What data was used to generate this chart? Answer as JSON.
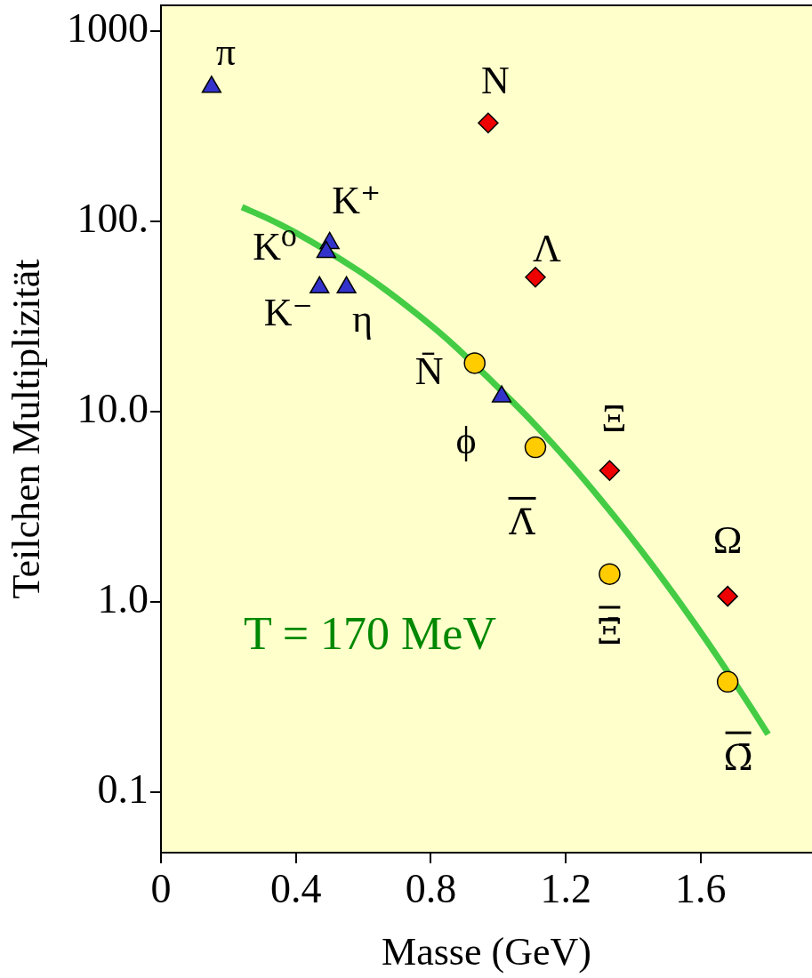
{
  "chart_data": {
    "type": "scatter",
    "xlabel": "Masse (GeV)",
    "ylabel": "Teilchen Multiplizität",
    "log": true,
    "xlim": [
      0,
      1.93
    ],
    "ylim": [
      0.048,
      1370
    ],
    "xticks": [
      0,
      0.4,
      0.8,
      1.2,
      1.6
    ],
    "yticks": [
      1000,
      {
        "value": 100,
        "label": "100."
      },
      {
        "value": 10,
        "label": "10.0"
      },
      {
        "value": 1,
        "label": "1.0"
      },
      0.1
    ],
    "series": [
      {
        "marker": "triangle",
        "color": "#3333cc",
        "x": [
          0.15,
          0.5,
          0.49,
          0.47,
          0.55,
          1.01
        ],
        "values": [
          510,
          77,
          69,
          45,
          45,
          12
        ]
      },
      {
        "marker": "diamond",
        "color": "#ee0000",
        "x": [
          0.97,
          1.11,
          1.33,
          1.68
        ],
        "values": [
          330,
          51,
          4.9,
          1.07
        ]
      },
      {
        "marker": "circle",
        "color": "#ffcc00",
        "x": [
          0.93,
          1.11,
          1.33,
          1.68
        ],
        "values": [
          18,
          6.5,
          1.4,
          0.38
        ]
      },
      {
        "type": "line",
        "color": "#44cc44",
        "x": [
          0.24,
          0.32,
          0.4,
          0.58,
          0.66,
          0.74,
          0.82,
          0.88,
          1.06,
          1.14,
          1.22,
          1.3,
          1.38,
          1.46,
          1.54,
          1.62,
          1.74,
          1.8
        ],
        "values": [
          119,
          103,
          87.2,
          55.9,
          44.5,
          34.7,
          26.6,
          21.4,
          10.5,
          7.45,
          5.17,
          3.51,
          2.34,
          1.53,
          0.98,
          0.615,
          0.295,
          0.201
        ]
      }
    ],
    "annotations": [
      {
        "text": "π",
        "x": 0.15,
        "y": 510
      },
      {
        "text": "K⁺",
        "x": 0.5,
        "y": 77
      },
      {
        "text": "K⁰",
        "x": 0.49,
        "y": 69
      },
      {
        "text": "K⁻",
        "x": 0.47,
        "y": 45
      },
      {
        "text": "η",
        "x": 0.55,
        "y": 45
      },
      {
        "text": "N",
        "x": 0.97,
        "y": 330
      },
      {
        "text": "Λ",
        "x": 1.11,
        "y": 51
      },
      {
        "text": "N̄",
        "x": 0.93,
        "y": 18
      },
      {
        "text": "ϕ",
        "x": 1.01,
        "y": 12
      },
      {
        "text": "Λ̄",
        "x": 1.11,
        "y": 6.5
      },
      {
        "text": "Ξ",
        "x": 1.33,
        "y": 4.9
      },
      {
        "text": "Ξ̄",
        "x": 1.33,
        "y": 1.4
      },
      {
        "text": "Ω",
        "x": 1.68,
        "y": 1.07
      },
      {
        "text": "Ω̄",
        "x": 1.68,
        "y": 0.38
      },
      "T = 170 MeV"
    ]
  }
}
